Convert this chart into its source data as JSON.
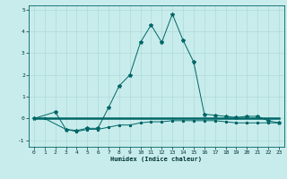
{
  "xlabel": "Humidex (Indice chaleur)",
  "background_color": "#c8ecec",
  "grid_color": "#b0d8d8",
  "line_color": "#006666",
  "main_x": [
    0,
    2,
    3,
    4,
    5,
    6,
    7,
    8,
    9,
    10,
    11,
    12,
    13,
    14,
    15,
    16,
    17,
    18,
    19,
    20,
    21,
    22,
    23
  ],
  "main_y": [
    0.0,
    0.3,
    -0.5,
    -0.55,
    -0.45,
    -0.45,
    0.5,
    1.5,
    2.0,
    3.5,
    4.3,
    3.5,
    4.8,
    3.6,
    2.6,
    0.2,
    0.15,
    0.1,
    0.05,
    0.1,
    0.1,
    -0.1,
    -0.2
  ],
  "lower_x": [
    0,
    1,
    3,
    4,
    5,
    6,
    7,
    8,
    9,
    10,
    11,
    12,
    13,
    14,
    15,
    16,
    17,
    18,
    19,
    20,
    21,
    22,
    23
  ],
  "lower_y": [
    0.0,
    0.0,
    -0.5,
    -0.6,
    -0.5,
    -0.5,
    -0.4,
    -0.3,
    -0.3,
    -0.2,
    -0.15,
    -0.15,
    -0.1,
    -0.1,
    -0.1,
    -0.1,
    -0.1,
    -0.15,
    -0.2,
    -0.2,
    -0.2,
    -0.2,
    -0.2
  ],
  "flat_x": [
    0,
    1,
    2,
    3,
    4,
    5,
    6,
    7,
    8,
    9,
    10,
    11,
    12,
    13,
    14,
    15,
    16,
    17,
    18,
    19,
    20,
    21,
    22,
    23
  ],
  "flat_y": [
    0.0,
    0.0,
    0.0,
    0.0,
    0.0,
    0.0,
    0.0,
    0.0,
    0.0,
    0.0,
    0.0,
    0.0,
    0.0,
    0.0,
    0.0,
    0.0,
    0.0,
    0.0,
    0.0,
    0.0,
    0.0,
    0.0,
    0.0,
    0.0
  ],
  "ylim": [
    -1.3,
    5.2
  ],
  "xlim": [
    -0.5,
    23.5
  ],
  "yticks": [
    -1,
    0,
    1,
    2,
    3,
    4,
    5
  ],
  "xticks": [
    0,
    1,
    2,
    3,
    4,
    5,
    6,
    7,
    8,
    9,
    10,
    11,
    12,
    13,
    14,
    15,
    16,
    17,
    18,
    19,
    20,
    21,
    22,
    23
  ]
}
